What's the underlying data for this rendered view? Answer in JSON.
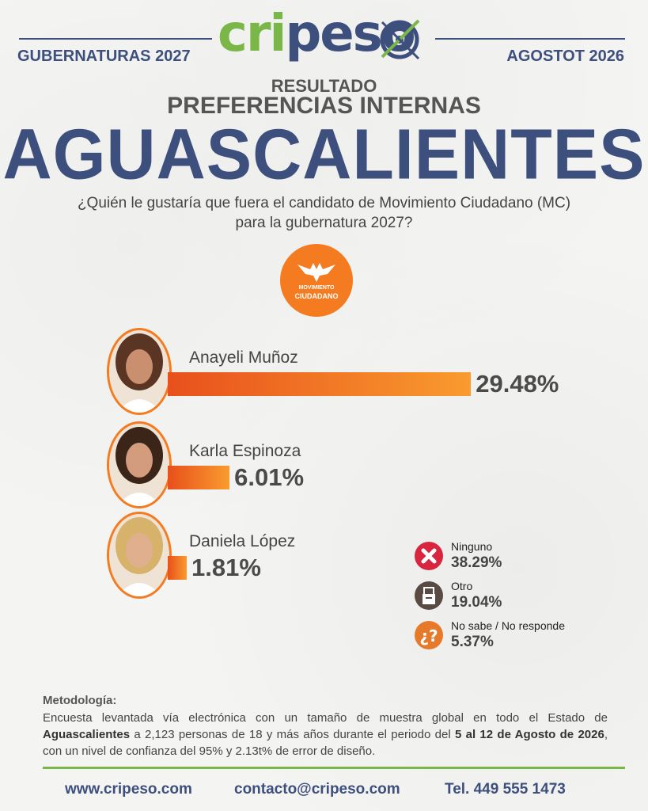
{
  "header": {
    "left_label": "GUBERNATURAS 2027",
    "right_label": "AGOSTOT 2026",
    "logo_green": "cri",
    "logo_blue": "peso"
  },
  "titles": {
    "resultado": "RESULTADO",
    "preferencias": "PREFERENCIAS INTERNAS",
    "state": "AGUASCALIENTES",
    "question_line1": "¿Quién le gustaría que fuera el candidato de Movimiento Ciudadano (MC)",
    "question_line2": "para la gubernatura 2027?"
  },
  "party_logo": {
    "line1": "MOVIMIENTO",
    "line2": "CIUDADANO"
  },
  "chart_data": {
    "type": "bar",
    "categories": [
      "Anayeli Muñoz",
      "Karla Espinoza",
      "Daniela López"
    ],
    "values": [
      29.48,
      6.01,
      1.81
    ],
    "value_labels": [
      "29.48%",
      "6.01%",
      "1.81%"
    ],
    "extra_categories": [
      "Ninguno",
      "Otro",
      "No sabe / No responde"
    ],
    "extra_values": [
      38.29,
      19.04,
      5.37
    ],
    "extra_value_labels": [
      "38.29%",
      "19.04%",
      "5.37%"
    ]
  },
  "colors": {
    "brand_blue": "#3d4f7c",
    "brand_green": "#7ab648",
    "mc_orange": "#f47b20",
    "ninguno_red": "#d7263d",
    "otro_gray": "#5a4a44",
    "nosabe_orange": "#e77a2a"
  },
  "icons": {
    "ninguno": "x-mark-icon",
    "otro": "ballot-box-icon",
    "nosabe": "question-mark-icon"
  },
  "methodology": {
    "title": "Metodología:",
    "t1": "Encuesta levantada vía electrónica con un tamaño de muestra global en todo el Estado de ",
    "b1": "Aguascalientes",
    "t2": " a 2,123 personas de 18 y más años durante el periodo del ",
    "b2": "5 al 12 de Agosto de 2026",
    "t3": ", con un nivel de confianza del 95% y 2.13t% de error de diseño."
  },
  "footer": {
    "website": "www.cripeso.com",
    "email": "contacto@cripeso.com",
    "phone": "Tel. 449 555 1473"
  }
}
